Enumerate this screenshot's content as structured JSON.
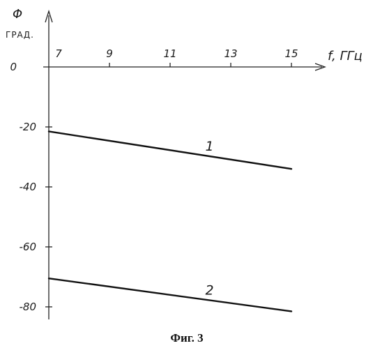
{
  "chart_data": {
    "type": "line",
    "caption": "Фиг. 3",
    "ylabel": "Φ",
    "ylabel_unit": "ГРАД.",
    "xlabel": "f, ГГц",
    "x_ticks": [
      "7",
      "9",
      "11",
      "13",
      "15"
    ],
    "y_ticks": [
      "0",
      "-20",
      "-40",
      "-60",
      "-80"
    ],
    "x_tick_values": [
      7,
      9,
      11,
      13,
      15
    ],
    "y_tick_values": [
      0,
      -20,
      -40,
      -60,
      -80
    ],
    "xlim": [
      7,
      15
    ],
    "ylim": [
      -80,
      0
    ],
    "grid": false,
    "series": [
      {
        "name": "1",
        "x": [
          7,
          15
        ],
        "values": [
          -21.5,
          -34
        ]
      },
      {
        "name": "2",
        "x": [
          7,
          15
        ],
        "values": [
          -70.5,
          -81.5
        ]
      }
    ]
  }
}
